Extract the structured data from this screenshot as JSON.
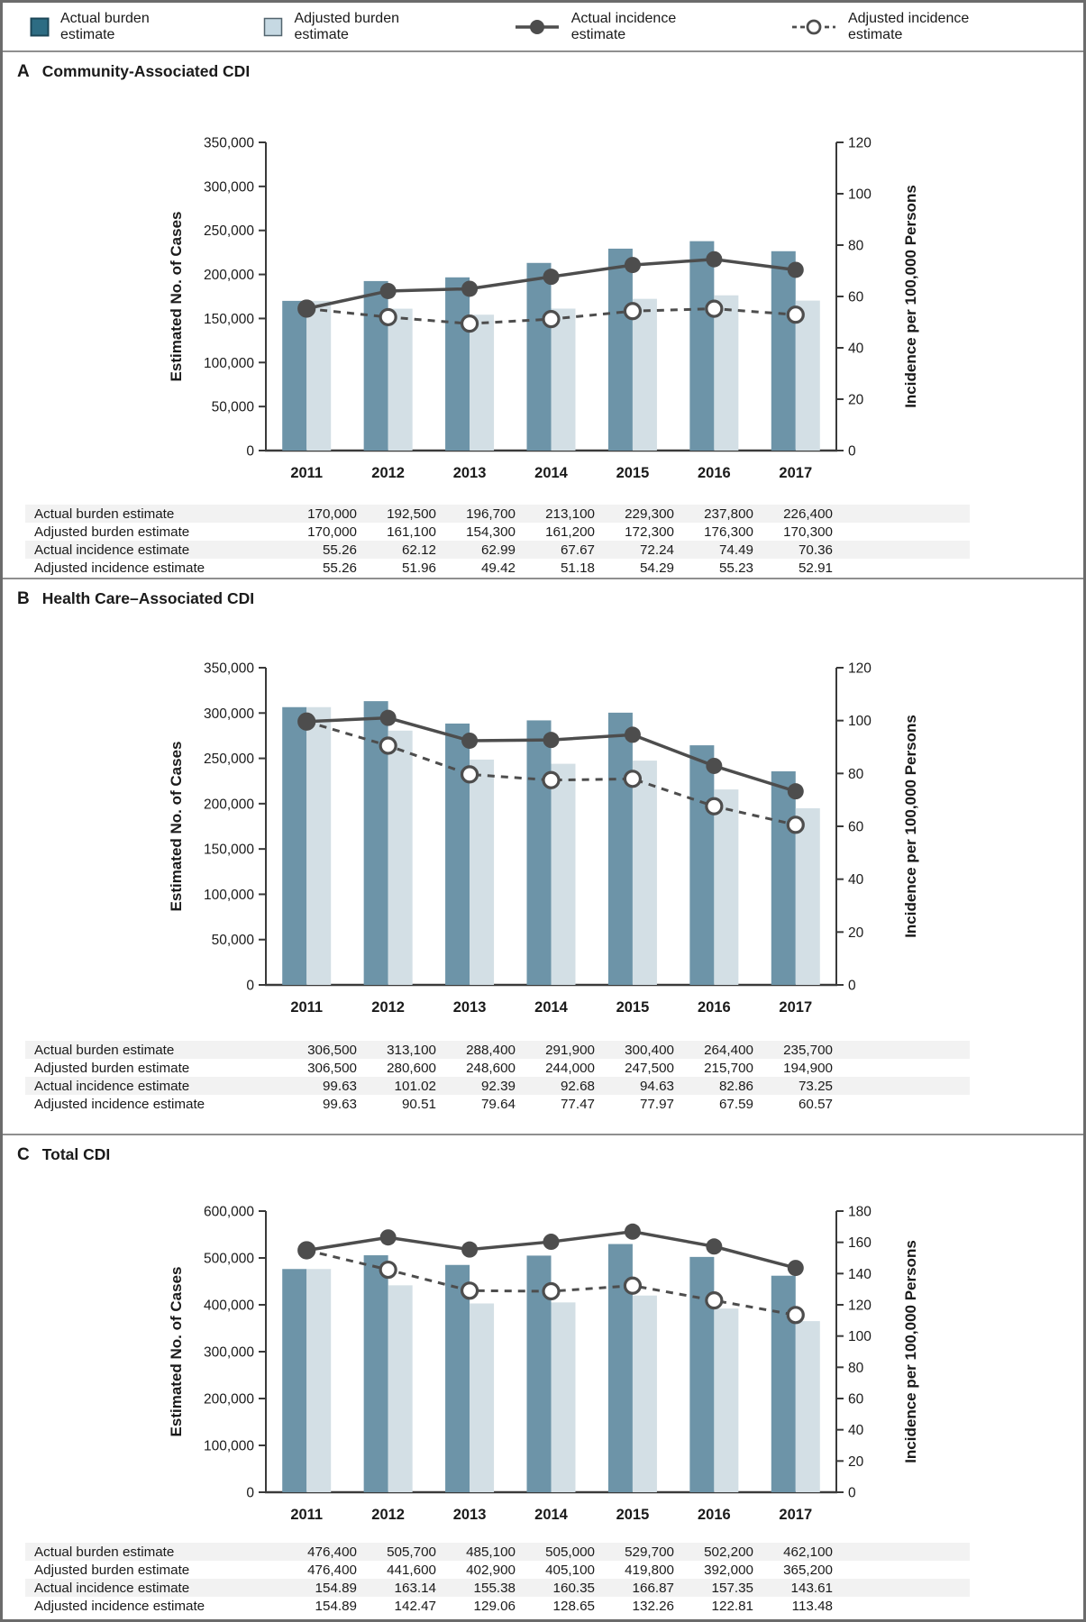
{
  "figure": {
    "legend": [
      {
        "label": "Actual burden estimate",
        "swatch": "bar-dark"
      },
      {
        "label": "Adjusted burden estimate",
        "swatch": "bar-light"
      },
      {
        "label": "Actual incidence estimate",
        "swatch": "line-solid"
      },
      {
        "label": "Adjusted incidence estimate",
        "swatch": "line-dashed"
      }
    ]
  },
  "colors": {
    "bar_actual": "#6d94a8",
    "bar_adjusted": "#d3dfe5",
    "legend_actual": "#2d6c83",
    "legend_actual_border": "#1b4657",
    "legend_adjusted": "#c6d9e3",
    "legend_adjusted_border": "#52646e",
    "line": "#4d4d4d",
    "axis": "#3a3a3a",
    "row_stripe": "#f2f2f2"
  },
  "chart_data": [
    {
      "panel_letter": "A",
      "title": "Community-Associated CDI",
      "type": "bar+line",
      "categories": [
        "2011",
        "2012",
        "2013",
        "2014",
        "2015",
        "2016",
        "2017"
      ],
      "left_axis": {
        "label": "Estimated No. of Cases",
        "min": 0,
        "max": 350000,
        "step": 50000,
        "format": "comma"
      },
      "right_axis": {
        "label": "Incidence per 100,000 Persons",
        "min": 0,
        "max": 120,
        "step": 20,
        "format": "int"
      },
      "series": [
        {
          "name": "Actual burden estimate",
          "kind": "bar",
          "axis": "left",
          "role": "actual",
          "format": "comma",
          "values": [
            170000,
            192500,
            196700,
            213100,
            229300,
            237800,
            226400
          ]
        },
        {
          "name": "Adjusted burden estimate",
          "kind": "bar",
          "axis": "left",
          "role": "adjusted",
          "format": "comma",
          "values": [
            170000,
            161100,
            154300,
            161200,
            172300,
            176300,
            170300
          ]
        },
        {
          "name": "Actual incidence estimate",
          "kind": "line",
          "axis": "right",
          "style": "solid",
          "format": "2dp",
          "values": [
            55.26,
            62.12,
            62.99,
            67.67,
            72.24,
            74.49,
            70.36
          ]
        },
        {
          "name": "Adjusted incidence estimate",
          "kind": "line",
          "axis": "right",
          "style": "dashed",
          "format": "2dp",
          "values": [
            55.26,
            51.96,
            49.42,
            51.18,
            54.29,
            55.23,
            52.91
          ]
        }
      ]
    },
    {
      "panel_letter": "B",
      "title": "Health Care–Associated CDI",
      "type": "bar+line",
      "categories": [
        "2011",
        "2012",
        "2013",
        "2014",
        "2015",
        "2016",
        "2017"
      ],
      "left_axis": {
        "label": "Estimated No. of Cases",
        "min": 0,
        "max": 350000,
        "step": 50000,
        "format": "comma"
      },
      "right_axis": {
        "label": "Incidence per 100,000 Persons",
        "min": 0,
        "max": 120,
        "step": 20,
        "format": "int"
      },
      "series": [
        {
          "name": "Actual burden estimate",
          "kind": "bar",
          "axis": "left",
          "role": "actual",
          "format": "comma",
          "values": [
            306500,
            313100,
            288400,
            291900,
            300400,
            264400,
            235700
          ]
        },
        {
          "name": "Adjusted burden estimate",
          "kind": "bar",
          "axis": "left",
          "role": "adjusted",
          "format": "comma",
          "values": [
            306500,
            280600,
            248600,
            244000,
            247500,
            215700,
            194900
          ]
        },
        {
          "name": "Actual incidence estimate",
          "kind": "line",
          "axis": "right",
          "style": "solid",
          "format": "2dp",
          "values": [
            99.63,
            101.02,
            92.39,
            92.68,
            94.63,
            82.86,
            73.25
          ]
        },
        {
          "name": "Adjusted incidence estimate",
          "kind": "line",
          "axis": "right",
          "style": "dashed",
          "format": "2dp",
          "values": [
            99.63,
            90.51,
            79.64,
            77.47,
            77.97,
            67.59,
            60.57
          ]
        }
      ]
    },
    {
      "panel_letter": "C",
      "title": "Total CDI",
      "type": "bar+line",
      "categories": [
        "2011",
        "2012",
        "2013",
        "2014",
        "2015",
        "2016",
        "2017"
      ],
      "left_axis": {
        "label": "Estimated No. of Cases",
        "min": 0,
        "max": 600000,
        "step": 100000,
        "format": "comma"
      },
      "right_axis": {
        "label": "Incidence per 100,000 Persons",
        "min": 0,
        "max": 180,
        "step": 20,
        "format": "int"
      },
      "series": [
        {
          "name": "Actual burden estimate",
          "kind": "bar",
          "axis": "left",
          "role": "actual",
          "format": "comma",
          "values": [
            476400,
            505700,
            485100,
            505000,
            529700,
            502200,
            462100
          ]
        },
        {
          "name": "Adjusted burden estimate",
          "kind": "bar",
          "axis": "left",
          "role": "adjusted",
          "format": "comma",
          "values": [
            476400,
            441600,
            402900,
            405100,
            419800,
            392000,
            365200
          ]
        },
        {
          "name": "Actual incidence estimate",
          "kind": "line",
          "axis": "right",
          "style": "solid",
          "format": "2dp",
          "values": [
            154.89,
            163.14,
            155.38,
            160.35,
            166.87,
            157.35,
            143.61
          ]
        },
        {
          "name": "Adjusted incidence estimate",
          "kind": "line",
          "axis": "right",
          "style": "dashed",
          "format": "2dp",
          "values": [
            154.89,
            142.47,
            129.06,
            128.65,
            132.26,
            122.81,
            113.48
          ]
        }
      ]
    }
  ]
}
